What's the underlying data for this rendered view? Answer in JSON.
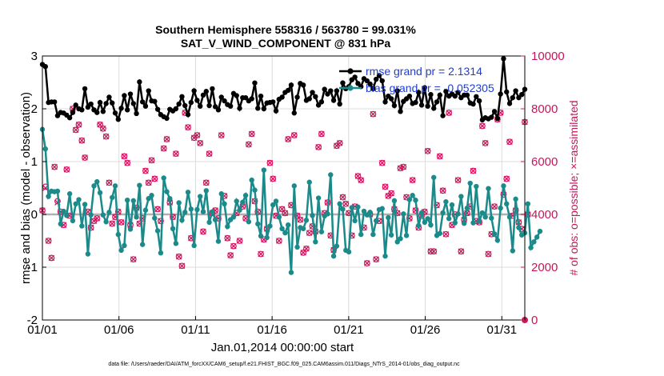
{
  "chart_data": {
    "type": "line",
    "title_line1": "Southern Hemisphere 558316 / 563780 = 99.031%",
    "title_line2": "SAT_V_WIND_COMPONENT @ 831 hPa",
    "xlabel": "Jan.01,2014 00:00:00 start",
    "ylabel_left": "rmse and bias (model - observation)",
    "ylabel_right": "# of obs: o=possible; ×=assimilated",
    "footnote": "data file: /Users/raeder/DAI/ATM_forcXX/CAM6_setup/f.e21.FHIST_BGC.f09_025.CAM6assim.011/Diags_NTrS_2014-01/obs_diag_output.nc",
    "xlim": [
      0,
      31.5
    ],
    "ylim_left": [
      -2,
      3
    ],
    "ylim_right": [
      0,
      10000
    ],
    "xticks": [
      {
        "v": 0,
        "label": "01/01"
      },
      {
        "v": 5,
        "label": "01/06"
      },
      {
        "v": 10,
        "label": "01/11"
      },
      {
        "v": 15,
        "label": "01/16"
      },
      {
        "v": 20,
        "label": "01/21"
      },
      {
        "v": 25,
        "label": "01/26"
      },
      {
        "v": 30,
        "label": "01/31"
      }
    ],
    "yticks_left": [
      "-2",
      "-1",
      "0",
      "1",
      "2",
      "3"
    ],
    "yticks_right": [
      "0",
      "2000",
      "4000",
      "6000",
      "8000",
      "10000"
    ],
    "legend": [
      {
        "label": "rmse grand pr = 2.1314",
        "color": "#000000"
      },
      {
        "label": "bias grand pr = -0.052305",
        "color": "#1a8a8a"
      }
    ],
    "colors": {
      "rmse": "#000000",
      "bias": "#1a8a8a",
      "obs": "#d0155e",
      "zero": "#b0b0b0",
      "grid": "#dcdcdc"
    },
    "series": [
      {
        "name": "rmse",
        "values": [
          2.84,
          2.8,
          2.12,
          2.13,
          2.13,
          1.87,
          1.93,
          1.92,
          1.88,
          1.83,
          1.93,
          2.07,
          2.0,
          1.98,
          2.38,
          2.03,
          2.09,
          1.98,
          1.93,
          2.12,
          1.95,
          2.1,
          2.22,
          2.11,
          1.92,
          1.8,
          2.01,
          2.25,
          1.98,
          2.28,
          2.1,
          1.91,
          2.51,
          2.13,
          2.05,
          2.34,
          2.15,
          2.14,
          1.99,
          1.89,
          1.85,
          1.82,
          1.99,
          1.96,
          2.0,
          2.09,
          2.23,
          2.06,
          1.89,
          2.12,
          2.34,
          2.16,
          2.05,
          2.26,
          2.33,
          2.06,
          2.38,
          2.04,
          1.98,
          2.22,
          2.15,
          2.08,
          2.05,
          2.29,
          2.25,
          2.01,
          2.21,
          2.21,
          2.15,
          2.19,
          2.49,
          2.01,
          2.24,
          2.0,
          2.11,
          2.12,
          2.13,
          1.96,
          2.18,
          2.22,
          2.31,
          2.35,
          2.45,
          1.92,
          2.22,
          2.48,
          2.45,
          2.16,
          2.19,
          2.31,
          2.23,
          2.07,
          2.13,
          2.37,
          2.28,
          2.34,
          2.16,
          2.34,
          2.09,
          2.49,
          2.38,
          2.42,
          2.55,
          2.6,
          2.48,
          2.42,
          2.57,
          2.53,
          2.47,
          2.38,
          2.56,
          2.63,
          2.53,
          2.13,
          2.24,
          2.19,
          2.06,
          2.34,
          1.95,
          2.14,
          2.19,
          2.24,
          2.1,
          2.12,
          2.31,
          2.07,
          2.4,
          2.05,
          2.27,
          2.01,
          2.13,
          2.26,
          1.87,
          2.33,
          2.24,
          2.28,
          2.24,
          2.31,
          2.21,
          2.26,
          2.26,
          2.11,
          2.09,
          2.23,
          2.15,
          1.79,
          1.83,
          1.81,
          1.84,
          1.95,
          1.82,
          2.28,
          2.95,
          2.32,
          2.1,
          2.21,
          2.34,
          2.21,
          2.27,
          2.37
        ]
      },
      {
        "name": "bias",
        "values": [
          1.61,
          1.24,
          0.34,
          0.44,
          0.43,
          0.44,
          -0.18,
          0.06,
          -0.02,
          0.39,
          -0.12,
          0.2,
          0.28,
          -0.22,
          0.19,
          -0.75,
          -0.01,
          0.54,
          0.62,
          0.41,
          -0.01,
          -0.14,
          0.04,
          0.32,
          0.54,
          -0.38,
          -0.68,
          -0.59,
          0.27,
          -0.28,
          0.26,
          -0.05,
          0.55,
          -0.57,
          0.08,
          0.3,
          0.36,
          -0.07,
          -0.31,
          -0.73,
          0.69,
          0.43,
          0.3,
          -0.27,
          -0.55,
          0.22,
          -0.11,
          0.04,
          0.42,
          0.1,
          -0.59,
          0.09,
          0.34,
          0.05,
          0.45,
          -0.15,
          0.05,
          -0.1,
          -0.51,
          0.39,
          0.2,
          -0.23,
          -0.1,
          -0.05,
          0.25,
          0.08,
          0.23,
          0.36,
          -0.14,
          0.65,
          0.46,
          -0.18,
          -0.41,
          0.84,
          -0.44,
          -0.22,
          0.18,
          0.25,
          -0.05,
          -0.27,
          -0.35,
          -0.2,
          -1.1,
          0.54,
          -0.62,
          -0.25,
          -0.27,
          -0.11,
          0.61,
          -0.02,
          -0.52,
          0.31,
          -0.33,
          -0.03,
          0.01,
          0.75,
          -0.79,
          -0.6,
          0.2,
          0.1,
          -0.68,
          -0.71,
          0.13,
          -0.12,
          0.14,
          -0.38,
          0.06,
          -0.01,
          0.04,
          -0.38,
          -0.12,
          0.09,
          0.11,
          -0.79,
          -0.06,
          -0.39,
          0.26,
          -0.52,
          -0.46,
          0.01,
          -0.4,
          0.28,
          0.36,
          0.27,
          -0.21,
          0.03,
          -0.15,
          -0.08,
          -0.2,
          0.7,
          -0.4,
          -0.36,
          0.03,
          0.24,
          -0.08,
          0.18,
          -0.16,
          0.01,
          0.34,
          -0.17,
          0.12,
          0.59,
          -0.16,
          0.53,
          -0.13,
          0.03,
          -0.05,
          0.49,
          -0.07,
          -0.37,
          -0.49,
          0.12,
          0.54,
          0.2,
          -0.05,
          -0.69,
          0.29,
          -0.25,
          -0.39,
          -0.35,
          0.2,
          -0.63,
          -0.52,
          -0.43,
          -0.32
        ]
      },
      {
        "name": "obs_possible",
        "values": [
          4150,
          5050,
          3000,
          2350,
          5800,
          4500,
          4100,
          3600,
          5700,
          3950,
          8000,
          7200,
          7400,
          6800,
          6150,
          4100,
          3500,
          3750,
          3850,
          7400,
          7250,
          6950,
          5200,
          3650,
          3900,
          4100,
          3700,
          6200,
          5950,
          3600,
          2300,
          4250,
          3650,
          3850,
          5650,
          5200,
          6050,
          5350,
          4200,
          3750,
          6500,
          6850,
          4450,
          3900,
          6300,
          2400,
          2050,
          7850,
          7300,
          3100,
          6900,
          7000,
          6700,
          3350,
          5200,
          6300,
          4050,
          4150,
          3850,
          7000,
          4700,
          3100,
          2450,
          2800,
          4050,
          3000,
          4300,
          3850,
          6650,
          7050,
          4500,
          4100,
          2500,
          3050,
          3450,
          5950,
          5350,
          3950,
          3000,
          4200,
          4050,
          6850,
          4350,
          7000,
          3950,
          3800,
          2550,
          2700,
          3300,
          3550,
          3350,
          6550,
          7050,
          4050,
          4450,
          3200,
          2650,
          6600,
          6700,
          4650,
          4400,
          4050,
          3200,
          4300,
          5450,
          5300,
          3500,
          2150,
          4000,
          7800,
          2300,
          3750,
          5950,
          5050,
          4700,
          4800,
          4200,
          4050,
          5750,
          5800,
          4650,
          3850,
          5300,
          4150,
          3500,
          3950,
          4100,
          6400,
          2600,
          2600,
          4350,
          6200,
          4900,
          3250,
          7850,
          3600,
          4000,
          5300,
          2600,
          3800,
          4050,
          4300,
          5650,
          3750,
          3700,
          7350,
          6700,
          2500,
          3250,
          4300,
          7600,
          7850,
          4750,
          5350,
          6750,
          3950,
          4150,
          3700,
          3450,
          7500,
          4000
        ]
      },
      {
        "name": "obs_assimilated",
        "values": [
          4150,
          5000,
          3000,
          2350,
          5800,
          4450,
          4100,
          3600,
          5700,
          3950,
          8000,
          7200,
          7400,
          6800,
          6150,
          4100,
          3500,
          3750,
          3850,
          7400,
          7250,
          6950,
          5200,
          3650,
          3900,
          4100,
          3700,
          6200,
          5950,
          3600,
          2300,
          4250,
          3650,
          3850,
          5650,
          5200,
          6050,
          5350,
          4200,
          3750,
          6500,
          6850,
          4450,
          3900,
          6300,
          2400,
          2050,
          7850,
          7300,
          3100,
          6900,
          7000,
          6700,
          3350,
          5200,
          6300,
          4050,
          4150,
          3850,
          7000,
          4700,
          3100,
          2450,
          2800,
          4050,
          3000,
          4300,
          3850,
          6650,
          7050,
          4500,
          4100,
          2500,
          3050,
          3450,
          5950,
          5350,
          3950,
          3000,
          4200,
          4050,
          6850,
          4350,
          7000,
          3950,
          3800,
          2550,
          2700,
          3300,
          3550,
          3350,
          6550,
          7050,
          4050,
          4450,
          3200,
          2650,
          6600,
          6700,
          4650,
          4400,
          4050,
          3200,
          4300,
          5450,
          5300,
          3500,
          2150,
          4000,
          7800,
          2300,
          3750,
          5950,
          5050,
          4700,
          4800,
          4200,
          4050,
          5750,
          5800,
          4650,
          3850,
          5300,
          4150,
          3500,
          3950,
          4100,
          6400,
          2600,
          2600,
          4350,
          6200,
          4900,
          3250,
          7850,
          3600,
          4000,
          5300,
          2600,
          3800,
          4050,
          4300,
          5650,
          3750,
          3700,
          7350,
          6700,
          2500,
          3250,
          4300,
          7600,
          7850,
          4750,
          5350,
          6750,
          3950,
          4150,
          3700,
          3450,
          7500,
          4000
        ]
      },
      {
        "name": "obs_possible_end",
        "values": [
          0
        ]
      }
    ]
  }
}
